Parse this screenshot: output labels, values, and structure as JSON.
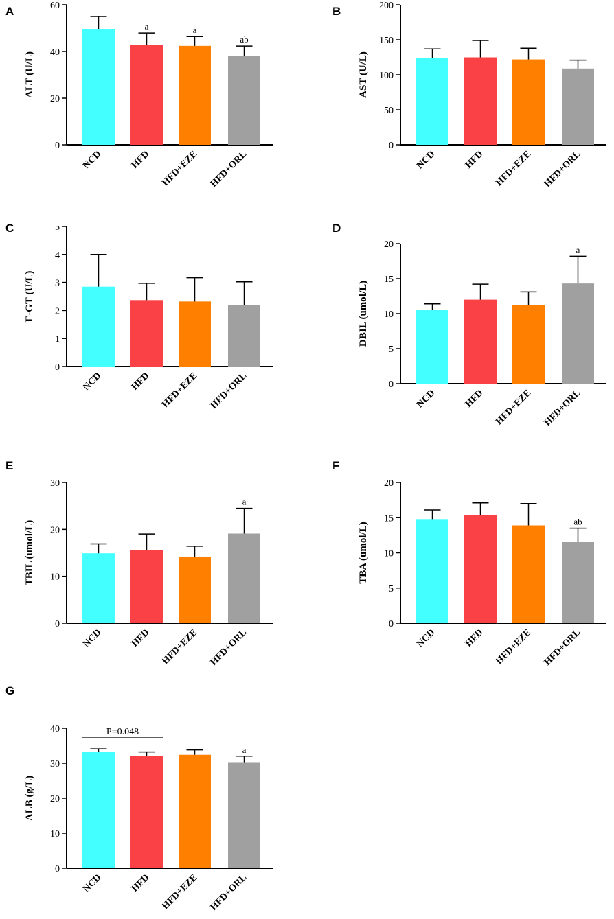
{
  "figure": {
    "background": "#ffffff"
  },
  "colors": {
    "NCD": "#44ffff",
    "HFD": "#fa4145",
    "HFD+EZE": "#ff8000",
    "HFD+ORL": "#a0a0a0"
  },
  "chart_data": [
    {
      "panel": "A",
      "type": "bar",
      "categories": [
        "NCD",
        "HFD",
        "HFD+EZE",
        "HFD+ORL"
      ],
      "values": [
        49.7,
        42.9,
        42.4,
        38.0
      ],
      "errors": [
        5.3,
        5.0,
        4.0,
        4.3
      ],
      "annotations": [
        "",
        "a",
        "a",
        "ab"
      ],
      "ylabel": "ALT (U/L)",
      "ylim": [
        0,
        60
      ],
      "yticks": [
        0,
        20,
        40,
        60
      ]
    },
    {
      "panel": "B",
      "type": "bar",
      "categories": [
        "NCD",
        "HFD",
        "HFD+EZE",
        "HFD+ORL"
      ],
      "values": [
        124,
        125,
        122,
        109
      ],
      "errors": [
        13,
        24,
        16,
        12
      ],
      "annotations": [
        "",
        "",
        "",
        ""
      ],
      "ylabel": "AST (U/L)",
      "ylim": [
        0,
        200
      ],
      "yticks": [
        0,
        50,
        100,
        150,
        200
      ]
    },
    {
      "panel": "C",
      "type": "bar",
      "categories": [
        "NCD",
        "HFD",
        "HFD+EZE",
        "HFD+ORL"
      ],
      "values": [
        2.85,
        2.37,
        2.32,
        2.2
      ],
      "errors": [
        1.15,
        0.6,
        0.85,
        0.82
      ],
      "annotations": [
        "",
        "",
        "",
        ""
      ],
      "ylabel": "Γ-GT (U/L)",
      "ylim": [
        0,
        5
      ],
      "yticks": [
        0,
        1,
        2,
        3,
        4,
        5
      ]
    },
    {
      "panel": "D",
      "type": "bar",
      "categories": [
        "NCD",
        "HFD",
        "HFD+EZE",
        "HFD+ORL"
      ],
      "values": [
        10.5,
        12.0,
        11.2,
        14.3
      ],
      "errors": [
        0.9,
        2.2,
        1.9,
        3.9
      ],
      "annotations": [
        "",
        "",
        "",
        "a"
      ],
      "ylabel": "DBIL (umol/L)",
      "ylim": [
        0,
        20
      ],
      "yticks": [
        0,
        5,
        10,
        15,
        20
      ]
    },
    {
      "panel": "E",
      "type": "bar",
      "categories": [
        "NCD",
        "HFD",
        "HFD+EZE",
        "HFD+ORL"
      ],
      "values": [
        14.9,
        15.6,
        14.2,
        19.1
      ],
      "errors": [
        2.0,
        3.4,
        2.2,
        5.4
      ],
      "annotations": [
        "",
        "",
        "",
        "a"
      ],
      "ylabel": "TBIL (umol/L)",
      "ylim": [
        0,
        30
      ],
      "yticks": [
        0,
        10,
        20,
        30
      ]
    },
    {
      "panel": "F",
      "type": "bar",
      "categories": [
        "NCD",
        "HFD",
        "HFD+EZE",
        "HFD+ORL"
      ],
      "values": [
        14.8,
        15.4,
        13.9,
        11.6
      ],
      "errors": [
        1.3,
        1.7,
        3.1,
        1.9
      ],
      "annotations": [
        "",
        "",
        "",
        "ab"
      ],
      "ylabel": "TBA (umol/L)",
      "ylim": [
        0,
        20
      ],
      "yticks": [
        0,
        5,
        10,
        15,
        20
      ]
    },
    {
      "panel": "G",
      "type": "bar",
      "categories": [
        "NCD",
        "HFD",
        "HFD+EZE",
        "HFD+ORL"
      ],
      "values": [
        33.2,
        32.1,
        32.4,
        30.3
      ],
      "errors": [
        0.9,
        1.1,
        1.4,
        1.7
      ],
      "annotations": [
        "",
        "",
        "",
        "a"
      ],
      "bracket": {
        "from": "NCD",
        "to": "HFD",
        "label": "P=0.048"
      },
      "ylabel": "ALB (g/L)",
      "ylim": [
        0,
        40
      ],
      "yticks": [
        0,
        10,
        20,
        30,
        40
      ]
    }
  ]
}
